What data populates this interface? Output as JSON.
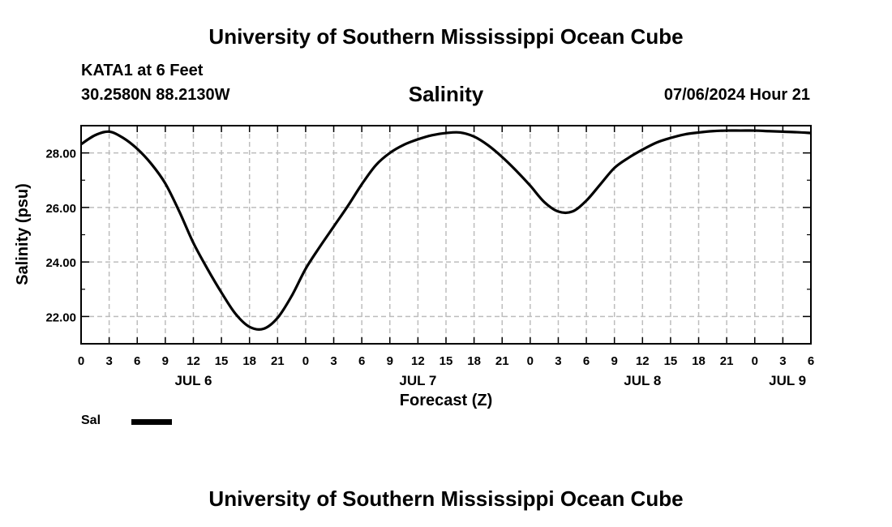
{
  "header": {
    "title": "University of Southern Mississippi Ocean Cube",
    "station": "KATA1 at 6 Feet",
    "coords": "30.2580N  88.2130W",
    "variable": "Salinity",
    "datetime": "07/06/2024 Hour 21"
  },
  "footer": {
    "title": "University of Southern Mississippi Ocean Cube"
  },
  "legend": {
    "label": "Sal",
    "color": "#000000"
  },
  "chart_data": {
    "type": "line",
    "title": "Salinity",
    "xlabel": "Forecast (Z)",
    "ylabel": "Salinity (psu)",
    "xlim": [
      0,
      78
    ],
    "ylim": [
      21,
      29
    ],
    "x_ticks": [
      0,
      3,
      6,
      9,
      12,
      15,
      18,
      21,
      24,
      27,
      30,
      33,
      36,
      39,
      42,
      45,
      48,
      51,
      54,
      57,
      60,
      63,
      66,
      69,
      72,
      75,
      78
    ],
    "x_tick_labels": [
      "0",
      "3",
      "6",
      "9",
      "12",
      "15",
      "18",
      "21",
      "0",
      "3",
      "6",
      "9",
      "12",
      "15",
      "18",
      "21",
      "0",
      "3",
      "6",
      "9",
      "12",
      "15",
      "18",
      "21",
      "0",
      "3",
      "6"
    ],
    "day_labels": [
      {
        "label": "JUL 6",
        "x": 12
      },
      {
        "label": "JUL 7",
        "x": 36
      },
      {
        "label": "JUL 8",
        "x": 60
      },
      {
        "label": "JUL 9",
        "x": 75.5
      }
    ],
    "y_ticks": [
      22,
      24,
      26,
      28
    ],
    "y_tick_labels": [
      "22.00",
      "24.00",
      "26.00",
      "28.00"
    ],
    "grid": true,
    "legend_position": "bottom-left",
    "series": [
      {
        "name": "Sal",
        "color": "#000000",
        "x": [
          0,
          1.5,
          3,
          4.5,
          6,
          7.5,
          9,
          10.5,
          12,
          13.5,
          15,
          16.5,
          18,
          19.5,
          21,
          22.5,
          24,
          25.5,
          27,
          28.5,
          30,
          31.5,
          33,
          34.5,
          36,
          37.5,
          39,
          40.5,
          42,
          43.5,
          45,
          46.5,
          48,
          49.5,
          51,
          52.5,
          54,
          55.5,
          57,
          58.5,
          60,
          61.5,
          63,
          64.5,
          66,
          67.5,
          69,
          70.5,
          72,
          73.5,
          75,
          76.5,
          78
        ],
        "y": [
          28.32,
          28.65,
          28.78,
          28.55,
          28.15,
          27.6,
          26.88,
          25.85,
          24.7,
          23.75,
          22.88,
          22.1,
          21.62,
          21.55,
          21.95,
          22.75,
          23.75,
          24.55,
          25.3,
          26.05,
          26.85,
          27.55,
          28.0,
          28.3,
          28.5,
          28.65,
          28.73,
          28.75,
          28.6,
          28.28,
          27.85,
          27.35,
          26.8,
          26.2,
          25.85,
          25.85,
          26.25,
          26.85,
          27.45,
          27.82,
          28.12,
          28.38,
          28.55,
          28.68,
          28.75,
          28.8,
          28.82,
          28.82,
          28.82,
          28.8,
          28.78,
          28.76,
          28.73
        ]
      }
    ]
  }
}
